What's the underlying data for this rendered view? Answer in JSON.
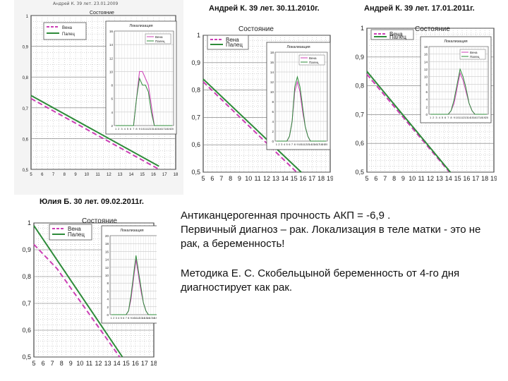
{
  "captions": {
    "top_mid": "Андрей К. 39 лет. 30.11.2010г.",
    "top_right": "Андрей К. 39 лет. 17.01.2011г.",
    "bottom_left": "Юлия Б. 30 лет. 09.02.2011г."
  },
  "scan_header": "Андрей К. 39 лет. 23.01.2009",
  "text_block": {
    "line1": "Антиканцерогенная прочность АКП = -6,9 .",
    "line2": " Первичный диагноз – рак. Локализация в теле матки - это не рак, а беременность!",
    "line3": " Методика Е. С. Скобельцыной беременность от 4-го дня диагностирует как рак."
  },
  "colors": {
    "vena": "#cc3fb5",
    "palets": "#2e8b3a",
    "grid": "#9a9a9a",
    "axis": "#222222"
  },
  "chart_data": [
    {
      "id": "scan_left",
      "type": "line",
      "title": "Состояние",
      "x": [
        5,
        6,
        7,
        8,
        9,
        10,
        11,
        12,
        13,
        14,
        15,
        16,
        17,
        18
      ],
      "ylim": [
        0.5,
        1.0
      ],
      "yticks": [
        "0,5",
        "0,6",
        "0,7",
        "0,8",
        "0,9",
        "1"
      ],
      "legend": [
        "Вена",
        "Палец"
      ],
      "series": [
        {
          "name": "Вена",
          "x": [
            5,
            16.5
          ],
          "y": [
            0.73,
            0.5
          ]
        },
        {
          "name": "Палец",
          "x": [
            5,
            16.5
          ],
          "y": [
            0.74,
            0.51
          ]
        }
      ],
      "inset": {
        "title": "Локализация",
        "legend": [
          "Вена",
          "Палец"
        ],
        "yticks": [
          "2",
          "4",
          "6",
          "8",
          "10",
          "12",
          "14",
          "16"
        ],
        "x": [
          1,
          2,
          3,
          4,
          5,
          6,
          7,
          8,
          9,
          10,
          11,
          12,
          13,
          14,
          15,
          16,
          17,
          18,
          19,
          20
        ],
        "series": [
          {
            "name": "Вена",
            "values": [
              0,
              0,
              0,
              0,
              0,
              0,
              1,
              6,
              10,
              10,
              9,
              8,
              5,
              2,
              0,
              0,
              0,
              0,
              0,
              0
            ]
          },
          {
            "name": "Палец",
            "values": [
              0,
              0,
              0,
              0,
              0,
              0,
              1,
              6,
              9,
              8,
              8,
              7,
              4,
              2,
              0,
              0,
              0,
              0,
              0,
              0
            ]
          }
        ]
      }
    },
    {
      "id": "andrey_2010",
      "type": "line",
      "title": "Состояние",
      "x": [
        5,
        6,
        7,
        8,
        9,
        10,
        11,
        12,
        13,
        14,
        15,
        16,
        17,
        18,
        19
      ],
      "ylim": [
        0.5,
        1.0
      ],
      "yticks": [
        "0,5",
        "0,6",
        "0,7",
        "0,8",
        "0,9",
        "1"
      ],
      "legend": [
        "Вена",
        "Палец"
      ],
      "series": [
        {
          "name": "Вена",
          "x": [
            5,
            15.3
          ],
          "y": [
            0.83,
            0.5
          ]
        },
        {
          "name": "Палец",
          "x": [
            5,
            15.8
          ],
          "y": [
            0.84,
            0.5
          ]
        }
      ],
      "inset": {
        "title": "Локализация",
        "legend": [
          "Вена",
          "Палец"
        ],
        "yticks": [
          "0",
          "2",
          "4",
          "6",
          "8",
          "10",
          "12",
          "14",
          "16",
          "18"
        ],
        "x": [
          1,
          2,
          3,
          4,
          5,
          6,
          7,
          8,
          9,
          10,
          11,
          12,
          13,
          14,
          15,
          16,
          17,
          18,
          19,
          20
        ],
        "series": [
          {
            "name": "Вена",
            "values": [
              0,
              0,
              0,
              0,
              0,
              1,
              4,
              10,
              12,
              10,
              6,
              3,
              1,
              0,
              0,
              0,
              0,
              0,
              0,
              0
            ]
          },
          {
            "name": "Палец",
            "values": [
              0,
              0,
              0,
              0,
              0,
              1,
              4,
              11,
              13,
              11,
              7,
              3,
              1,
              0,
              0,
              0,
              0,
              0,
              0,
              0
            ]
          }
        ]
      }
    },
    {
      "id": "andrey_2011",
      "type": "line",
      "title": "Состояние",
      "x": [
        5,
        6,
        7,
        8,
        9,
        10,
        11,
        12,
        13,
        14,
        15,
        16,
        17,
        18,
        19
      ],
      "ylim": [
        0.5,
        1.0
      ],
      "yticks": [
        "0,5",
        "0,6",
        "0,7",
        "0,8",
        "0,9",
        "1"
      ],
      "legend": [
        "Вена",
        "Палец"
      ],
      "series": [
        {
          "name": "Вена",
          "x": [
            5,
            14.1
          ],
          "y": [
            0.84,
            0.5
          ]
        },
        {
          "name": "Палец",
          "x": [
            5,
            14.2
          ],
          "y": [
            0.85,
            0.5
          ]
        }
      ],
      "inset": {
        "title": "Локализация",
        "legend": [
          "Вена",
          "Палец"
        ],
        "yticks": [
          "0",
          "2",
          "4",
          "6",
          "8",
          "10",
          "12",
          "14",
          "16",
          "18"
        ],
        "x": [
          1,
          2,
          3,
          4,
          5,
          6,
          7,
          8,
          9,
          10,
          11,
          12,
          13,
          14,
          15,
          16,
          17,
          18,
          19,
          20
        ],
        "series": [
          {
            "name": "Вена",
            "values": [
              0,
              0,
              0,
              0,
              0,
              0,
              0,
              1,
              3,
              7,
              11,
              9,
              6,
              3,
              1,
              0,
              0,
              0,
              0,
              0
            ]
          },
          {
            "name": "Палец",
            "values": [
              0,
              0,
              0,
              0,
              0,
              0,
              0,
              1,
              4,
              8,
              12,
              10,
              7,
              3,
              1,
              0,
              0,
              0,
              0,
              0
            ]
          }
        ]
      }
    },
    {
      "id": "yulia_2011",
      "type": "line",
      "title": "Состояние",
      "x": [
        5,
        6,
        7,
        8,
        9,
        10,
        11,
        12,
        13,
        14,
        15,
        16,
        17,
        18
      ],
      "ylim": [
        0.5,
        1.0
      ],
      "yticks": [
        "0,5",
        "0,6",
        "0,7",
        "0,8",
        "0,9",
        "1"
      ],
      "legend": [
        "Вена",
        "Палец"
      ],
      "series": [
        {
          "name": "Вена",
          "x": [
            5,
            7.5,
            14.3
          ],
          "y": [
            0.92,
            0.83,
            0.5
          ]
        },
        {
          "name": "Палец",
          "x": [
            5,
            14.6
          ],
          "y": [
            0.99,
            0.5
          ]
        }
      ],
      "inset": {
        "title": "Локализация",
        "legend": [],
        "yticks": [
          "0",
          "2",
          "4",
          "6",
          "8",
          "10",
          "12",
          "14",
          "16",
          "18",
          "20"
        ],
        "x": [
          1,
          2,
          3,
          4,
          5,
          6,
          7,
          8,
          9,
          10,
          11,
          12,
          13,
          14,
          15,
          16,
          17,
          18,
          19,
          20
        ],
        "series": [
          {
            "name": "Вена",
            "values": [
              0,
              0,
              0,
              0,
              0,
              0,
              0,
              1,
              4,
              9,
              14,
              10,
              6,
              3,
              1,
              0,
              0,
              0,
              0,
              0
            ]
          },
          {
            "name": "Палец",
            "values": [
              0,
              0,
              0,
              0,
              0,
              0,
              0,
              1,
              5,
              10,
              15,
              11,
              7,
              3,
              1,
              0,
              0,
              0,
              0,
              0
            ]
          }
        ]
      }
    }
  ]
}
